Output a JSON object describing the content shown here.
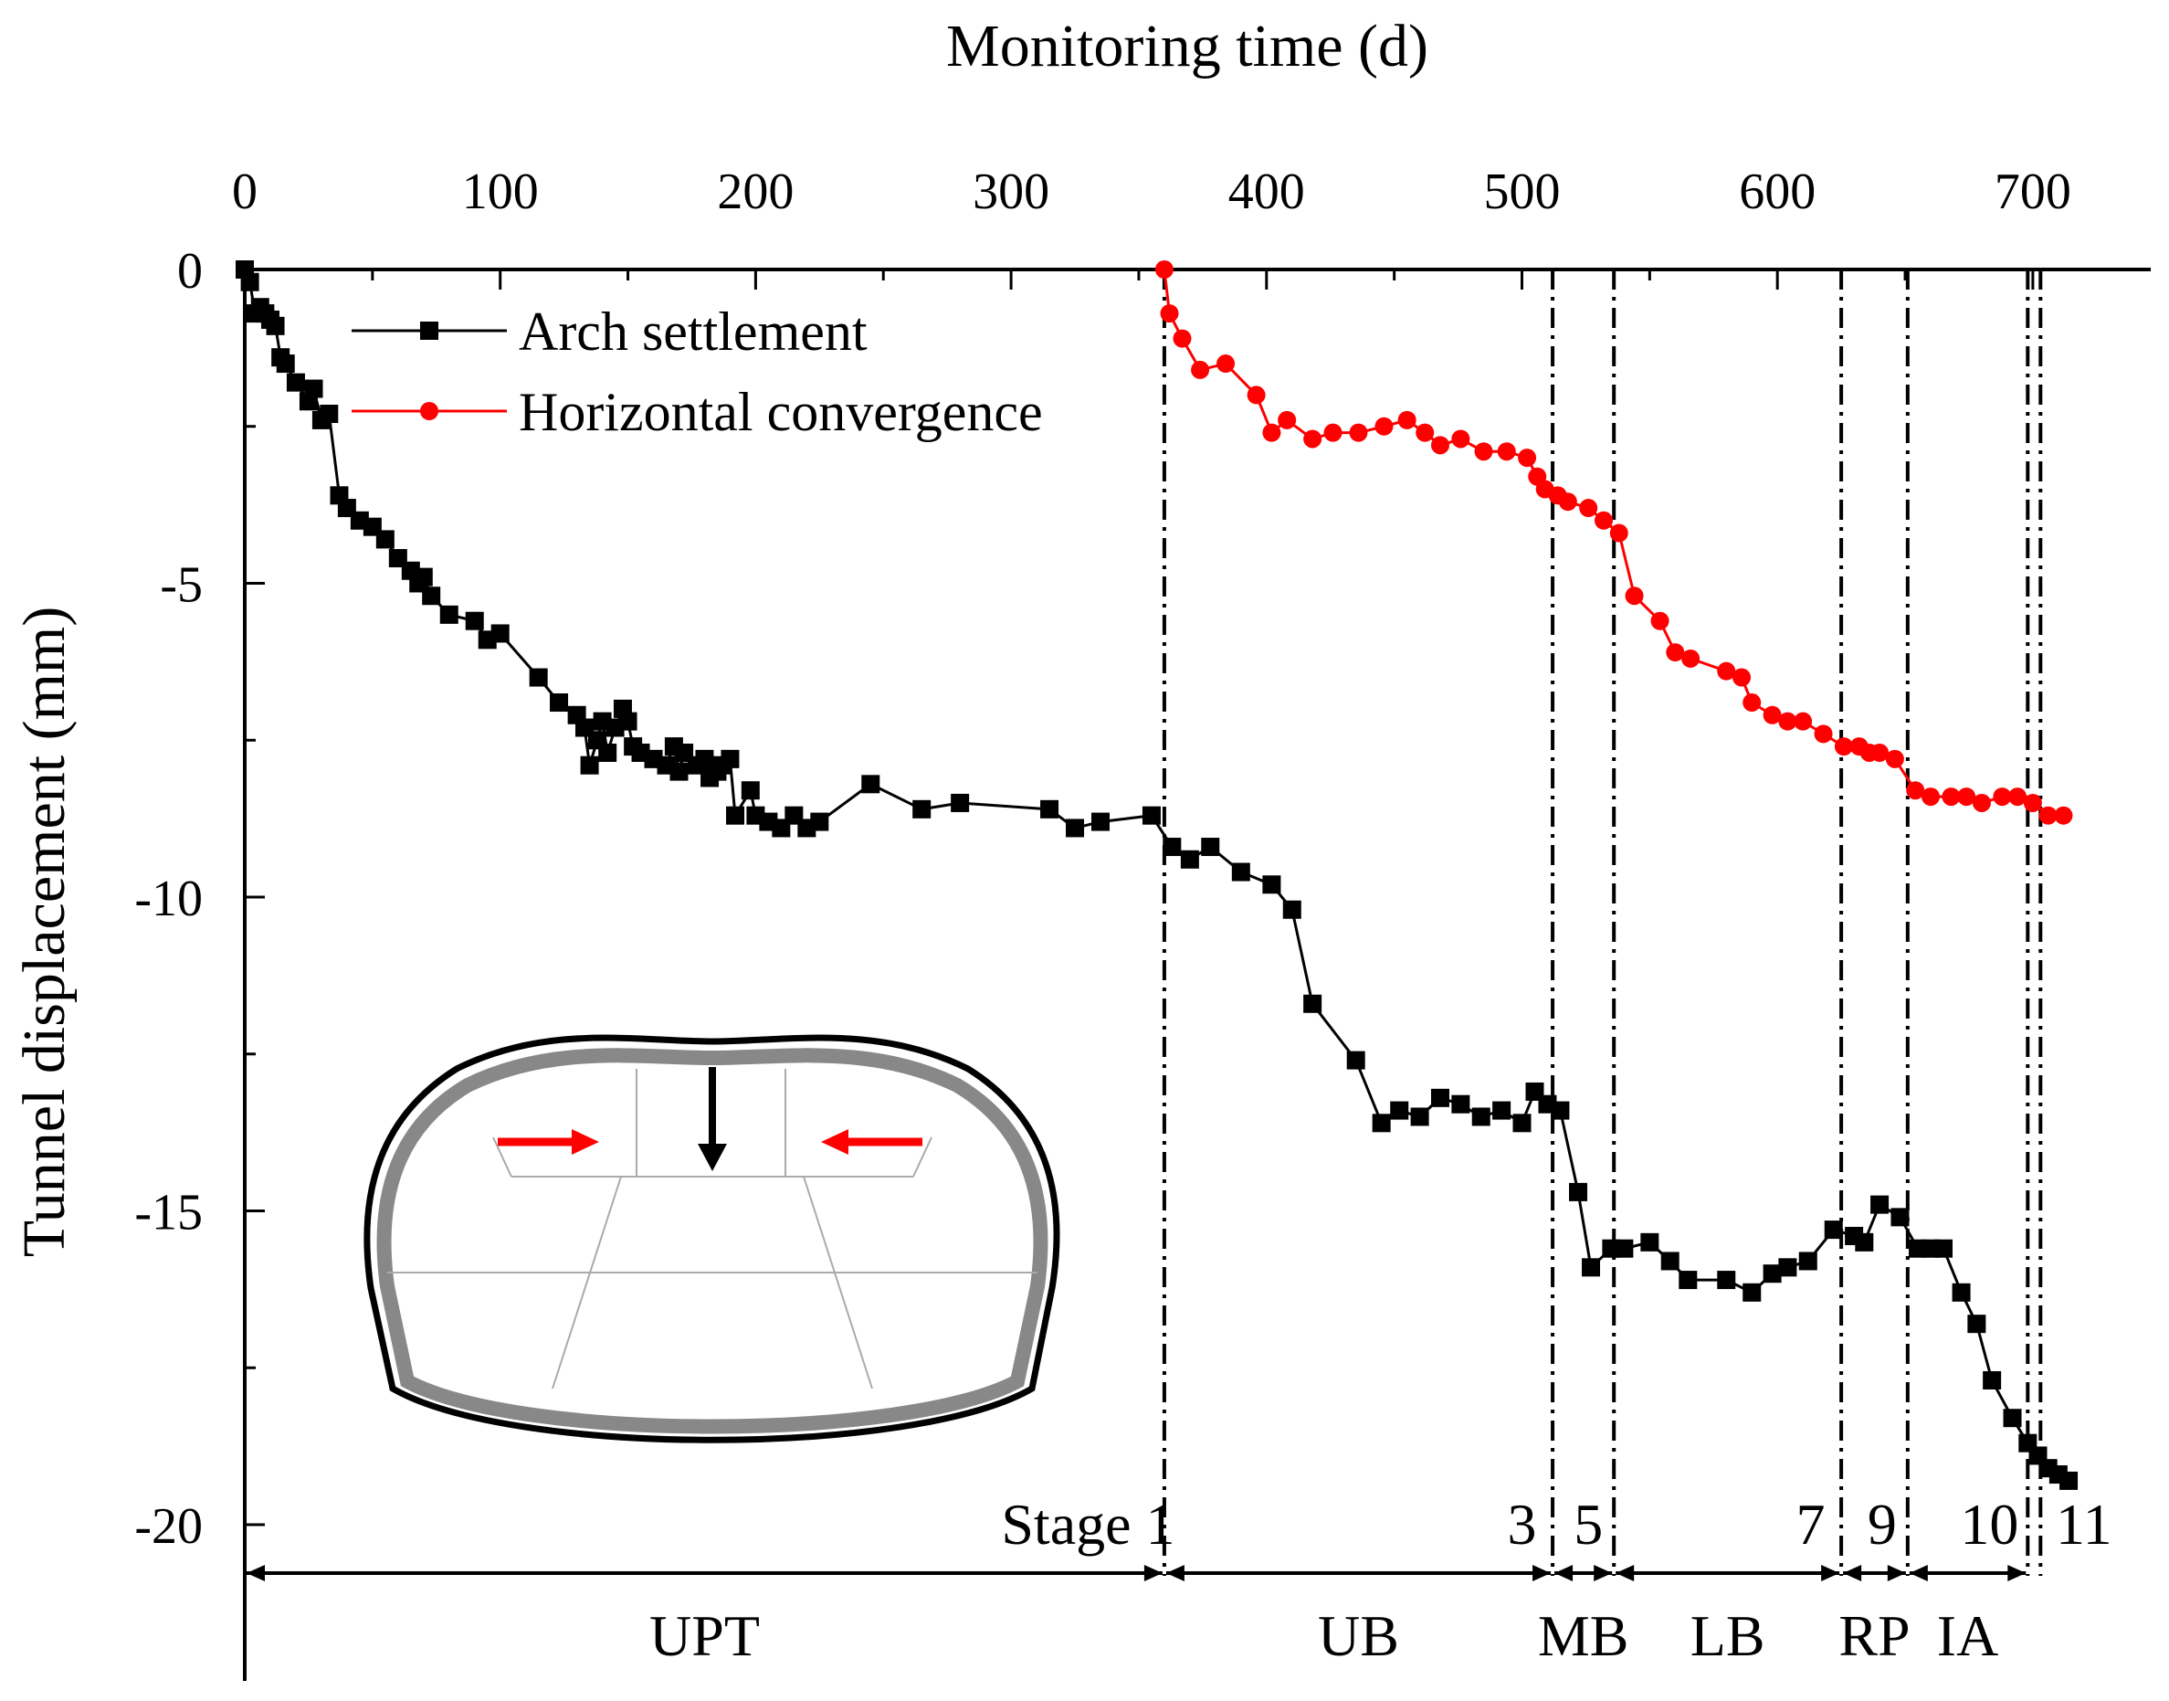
{
  "chart_data": {
    "type": "line",
    "title": "",
    "xlabel": "Monitoring time (d)",
    "ylabel": "Tunnel displacement (mm)",
    "xlim": [
      0,
      750
    ],
    "ylim": [
      -22.5,
      0
    ],
    "x_ticks": [
      "0",
      "100",
      "200",
      "300",
      "400",
      "500",
      "600",
      "700"
    ],
    "y_ticks": [
      "0",
      "-5",
      "-10",
      "-15",
      "-20"
    ],
    "x_axis_position": "top",
    "grid": false,
    "legend_position": "top-left",
    "series": [
      {
        "name": "Arch settlement",
        "color": "#000000",
        "marker": "square",
        "points": [
          [
            0,
            0
          ],
          [
            2,
            -0.2
          ],
          [
            4,
            -0.7
          ],
          [
            6,
            -0.6
          ],
          [
            8,
            -0.7
          ],
          [
            10,
            -0.8
          ],
          [
            12,
            -0.9
          ],
          [
            14,
            -1.4
          ],
          [
            16,
            -1.5
          ],
          [
            20,
            -1.8
          ],
          [
            25,
            -2.1
          ],
          [
            27,
            -1.9
          ],
          [
            30,
            -2.4
          ],
          [
            33,
            -2.3
          ],
          [
            37,
            -3.6
          ],
          [
            40,
            -3.8
          ],
          [
            45,
            -4.0
          ],
          [
            50,
            -4.1
          ],
          [
            55,
            -4.3
          ],
          [
            60,
            -4.6
          ],
          [
            65,
            -4.8
          ],
          [
            68,
            -5.0
          ],
          [
            70,
            -4.9
          ],
          [
            73,
            -5.2
          ],
          [
            80,
            -5.5
          ],
          [
            90,
            -5.6
          ],
          [
            95,
            -5.9
          ],
          [
            100,
            -5.8
          ],
          [
            115,
            -6.5
          ],
          [
            123,
            -6.9
          ],
          [
            130,
            -7.1
          ],
          [
            133,
            -7.3
          ],
          [
            135,
            -7.9
          ],
          [
            138,
            -7.5
          ],
          [
            140,
            -7.2
          ],
          [
            142,
            -7.7
          ],
          [
            145,
            -7.3
          ],
          [
            148,
            -7.0
          ],
          [
            150,
            -7.2
          ],
          [
            152,
            -7.6
          ],
          [
            155,
            -7.7
          ],
          [
            160,
            -7.8
          ],
          [
            165,
            -7.9
          ],
          [
            168,
            -7.6
          ],
          [
            170,
            -8.0
          ],
          [
            172,
            -7.7
          ],
          [
            177,
            -7.9
          ],
          [
            180,
            -7.8
          ],
          [
            182,
            -8.1
          ],
          [
            185,
            -8.0
          ],
          [
            187,
            -7.9
          ],
          [
            190,
            -7.8
          ],
          [
            192,
            -8.7
          ],
          [
            198,
            -8.3
          ],
          [
            200,
            -8.7
          ],
          [
            205,
            -8.8
          ],
          [
            210,
            -8.9
          ],
          [
            215,
            -8.7
          ],
          [
            220,
            -8.9
          ],
          [
            225,
            -8.8
          ],
          [
            245,
            -8.2
          ],
          [
            265,
            -8.6
          ],
          [
            280,
            -8.5
          ],
          [
            315,
            -8.6
          ],
          [
            325,
            -8.9
          ],
          [
            335,
            -8.8
          ],
          [
            355,
            -8.7
          ],
          [
            363,
            -9.2
          ],
          [
            370,
            -9.4
          ],
          [
            378,
            -9.2
          ],
          [
            390,
            -9.6
          ],
          [
            402,
            -9.8
          ],
          [
            410,
            -10.2
          ],
          [
            418,
            -11.7
          ],
          [
            435,
            -12.6
          ],
          [
            445,
            -13.6
          ],
          [
            452,
            -13.4
          ],
          [
            460,
            -13.5
          ],
          [
            468,
            -13.2
          ],
          [
            476,
            -13.3
          ],
          [
            484,
            -13.5
          ],
          [
            492,
            -13.4
          ],
          [
            500,
            -13.6
          ],
          [
            505,
            -13.1
          ],
          [
            510,
            -13.3
          ],
          [
            515,
            -13.4
          ],
          [
            522,
            -14.7
          ],
          [
            527,
            -15.9
          ],
          [
            535,
            -15.6
          ],
          [
            540,
            -15.6
          ],
          [
            550,
            -15.5
          ],
          [
            558,
            -15.8
          ],
          [
            565,
            -16.1
          ],
          [
            580,
            -16.1
          ],
          [
            590,
            -16.3
          ],
          [
            598,
            -16.0
          ],
          [
            604,
            -15.9
          ],
          [
            612,
            -15.8
          ],
          [
            622,
            -15.3
          ],
          [
            630,
            -15.4
          ],
          [
            634,
            -15.5
          ],
          [
            640,
            -14.9
          ],
          [
            648,
            -15.1
          ],
          [
            655,
            -15.6
          ],
          [
            660,
            -15.6
          ],
          [
            665,
            -15.6
          ],
          [
            672,
            -16.3
          ],
          [
            678,
            -16.8
          ],
          [
            684,
            -17.7
          ],
          [
            692,
            -18.3
          ],
          [
            698,
            -18.7
          ],
          [
            702,
            -18.9
          ],
          [
            706,
            -19.1
          ],
          [
            710,
            -19.2
          ],
          [
            714,
            -19.3
          ]
        ]
      },
      {
        "name": "Horizontal convergence",
        "color": "#ff0000",
        "marker": "circle",
        "points": [
          [
            360,
            0
          ],
          [
            362,
            -0.7
          ],
          [
            367,
            -1.1
          ],
          [
            374,
            -1.6
          ],
          [
            384,
            -1.5
          ],
          [
            396,
            -2.0
          ],
          [
            402,
            -2.6
          ],
          [
            408,
            -2.4
          ],
          [
            418,
            -2.7
          ],
          [
            426,
            -2.6
          ],
          [
            436,
            -2.6
          ],
          [
            446,
            -2.5
          ],
          [
            455,
            -2.4
          ],
          [
            462,
            -2.6
          ],
          [
            468,
            -2.8
          ],
          [
            476,
            -2.7
          ],
          [
            485,
            -2.9
          ],
          [
            494,
            -2.9
          ],
          [
            502,
            -3.0
          ],
          [
            506,
            -3.3
          ],
          [
            509,
            -3.5
          ],
          [
            514,
            -3.6
          ],
          [
            518,
            -3.7
          ],
          [
            526,
            -3.8
          ],
          [
            532,
            -4.0
          ],
          [
            538,
            -4.2
          ],
          [
            544,
            -5.2
          ],
          [
            554,
            -5.6
          ],
          [
            560,
            -6.1
          ],
          [
            566,
            -6.2
          ],
          [
            580,
            -6.4
          ],
          [
            586,
            -6.5
          ],
          [
            590,
            -6.9
          ],
          [
            598,
            -7.1
          ],
          [
            604,
            -7.2
          ],
          [
            610,
            -7.2
          ],
          [
            618,
            -7.4
          ],
          [
            626,
            -7.6
          ],
          [
            632,
            -7.6
          ],
          [
            636,
            -7.7
          ],
          [
            640,
            -7.7
          ],
          [
            646,
            -7.8
          ],
          [
            654,
            -8.3
          ],
          [
            660,
            -8.4
          ],
          [
            668,
            -8.4
          ],
          [
            674,
            -8.4
          ],
          [
            680,
            -8.5
          ],
          [
            688,
            -8.4
          ],
          [
            694,
            -8.4
          ],
          [
            700,
            -8.5
          ],
          [
            706,
            -8.7
          ],
          [
            712,
            -8.7
          ]
        ]
      }
    ],
    "stage_lines": [
      360,
      512,
      536,
      625,
      651,
      698,
      703
    ],
    "stage_numbers": [
      {
        "text": "Stage 1",
        "x": 357
      },
      {
        "text": "3",
        "x": 500
      },
      {
        "text": "5",
        "x": 526
      },
      {
        "text": "7",
        "x": 613
      },
      {
        "text": "9",
        "x": 641
      },
      {
        "text": "10",
        "x": 683
      },
      {
        "text": "11",
        "x": 720
      }
    ],
    "phases": [
      {
        "label": "UPT",
        "from": 0,
        "to": 360
      },
      {
        "label": "UB",
        "from": 360,
        "to": 512
      },
      {
        "label": "MB",
        "from": 512,
        "to": 536
      },
      {
        "label": "LB",
        "from": 536,
        "to": 625
      },
      {
        "label": "RP",
        "from": 625,
        "to": 651
      },
      {
        "label": "IA",
        "from": 651,
        "to": 698
      }
    ]
  }
}
